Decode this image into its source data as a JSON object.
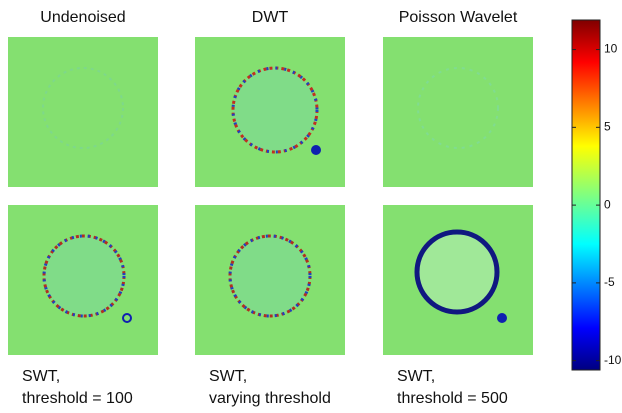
{
  "titles": [
    "Undenoised",
    "DWT",
    "Poisson Wavelet"
  ],
  "captions": [
    [
      "SWT,",
      "threshold = 100"
    ],
    [
      "SWT,",
      "varying threshold"
    ],
    [
      "SWT,",
      "threshold = 500"
    ]
  ],
  "colorbar": {
    "lim": [
      -10.6,
      11.9
    ],
    "ticks": [
      -10,
      -5,
      0,
      5,
      10
    ]
  }
}
